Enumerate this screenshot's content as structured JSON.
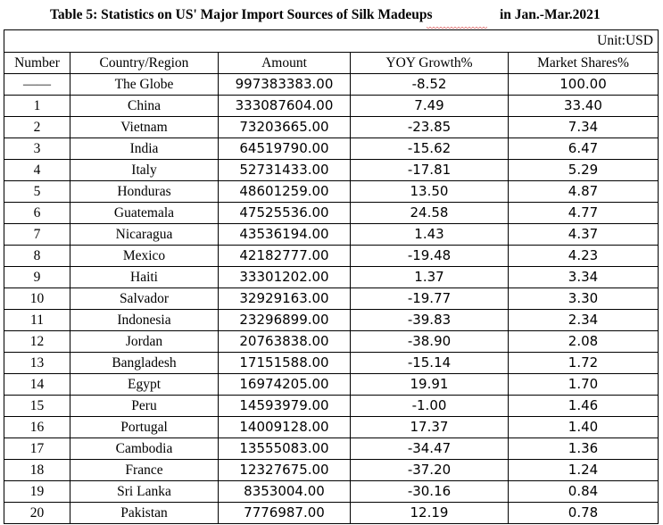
{
  "title": {
    "main": "Table 5: Statistics on US' Major Import Sources of Silk Madeups",
    "period": "in Jan.-Mar.2021"
  },
  "unit": "Unit:USD",
  "headers": [
    "Number",
    "Country/Region",
    "Amount",
    "YOY Growth%",
    "Market Shares%"
  ],
  "rows": [
    [
      "——",
      "The Globe",
      "997383383.00",
      "-8.52",
      "100.00"
    ],
    [
      "1",
      "China",
      "333087604.00",
      "7.49",
      "33.40"
    ],
    [
      "2",
      "Vietnam",
      "73203665.00",
      "-23.85",
      "7.34"
    ],
    [
      "3",
      "India",
      "64519790.00",
      "-15.62",
      "6.47"
    ],
    [
      "4",
      "Italy",
      "52731433.00",
      "-17.81",
      "5.29"
    ],
    [
      "5",
      "Honduras",
      "48601259.00",
      "13.50",
      "4.87"
    ],
    [
      "6",
      "Guatemala",
      "47525536.00",
      "24.58",
      "4.77"
    ],
    [
      "7",
      "Nicaragua",
      "43536194.00",
      "1.43",
      "4.37"
    ],
    [
      "8",
      "Mexico",
      "42182777.00",
      "-19.48",
      "4.23"
    ],
    [
      "9",
      "Haiti",
      "33301202.00",
      "1.37",
      "3.34"
    ],
    [
      "10",
      "Salvador",
      "32929163.00",
      "-19.77",
      "3.30"
    ],
    [
      "11",
      "Indonesia",
      "23296899.00",
      "-39.83",
      "2.34"
    ],
    [
      "12",
      "Jordan",
      "20763838.00",
      "-38.90",
      "2.08"
    ],
    [
      "13",
      "Bangladesh",
      "17151588.00",
      "-15.14",
      "1.72"
    ],
    [
      "14",
      "Egypt",
      "16974205.00",
      "19.91",
      "1.70"
    ],
    [
      "15",
      "Peru",
      "14593979.00",
      "-1.00",
      "1.46"
    ],
    [
      "16",
      "Portugal",
      "14009128.00",
      "17.37",
      "1.40"
    ],
    [
      "17",
      "Cambodia",
      "13555083.00",
      "-34.47",
      "1.36"
    ],
    [
      "18",
      "France",
      "12327675.00",
      "-37.20",
      "1.24"
    ],
    [
      "19",
      "Sri Lanka",
      "8353004.00",
      "-30.16",
      "0.84"
    ],
    [
      "20",
      "Pakistan",
      "7776987.00",
      "12.19",
      "0.78"
    ]
  ]
}
